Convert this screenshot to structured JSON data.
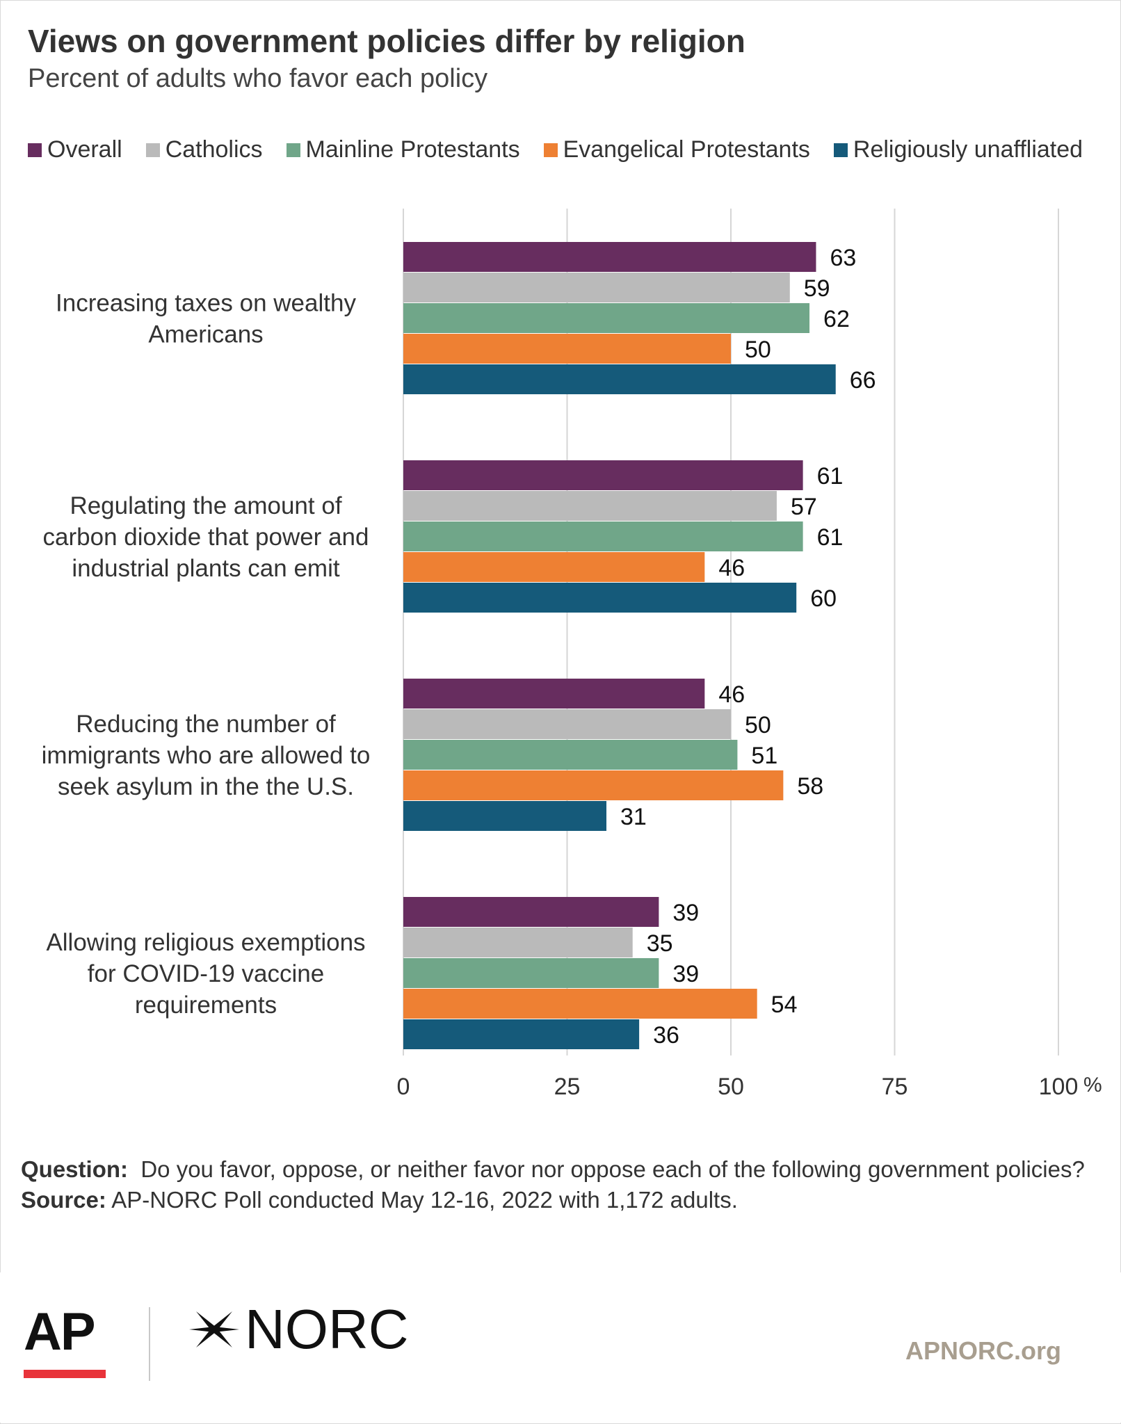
{
  "header": {
    "title": "Views on government policies differ by religion",
    "subtitle": "Percent of adults who favor each policy"
  },
  "footnote": {
    "question_label": "Question:",
    "question_text": "Do you favor, oppose, or neither favor nor oppose each of the following government policies?",
    "source_label": "Source:",
    "source_text": "AP-NORC Poll conducted May 12-16, 2022 with 1,172 adults."
  },
  "footer": {
    "ap_logo": "AP",
    "norc_logo": "NORC",
    "site": "APNORC.org"
  },
  "chart_data": {
    "type": "bar",
    "orientation": "horizontal",
    "categories": [
      [
        "Increasing taxes on wealthy",
        "Americans"
      ],
      [
        "Regulating the amount of",
        "carbon dioxide that power and",
        "industrial plants can emit"
      ],
      [
        "Reducing the number of",
        "immigrants who are allowed to",
        "seek asylum in the the U.S."
      ],
      [
        "Allowing religious exemptions",
        "for COVID-19 vaccine",
        "requirements"
      ]
    ],
    "series": [
      {
        "name": "Overall",
        "color": "#672d5f",
        "values": [
          63,
          61,
          46,
          39
        ]
      },
      {
        "name": "Catholics",
        "color": "#bababa",
        "values": [
          59,
          57,
          50,
          35
        ]
      },
      {
        "name": "Mainline Protestants",
        "color": "#70a689",
        "values": [
          62,
          61,
          51,
          39
        ]
      },
      {
        "name": "Evangelical Protestants",
        "color": "#ee8033",
        "values": [
          50,
          46,
          58,
          54
        ]
      },
      {
        "name": "Religiously unaffliated",
        "color": "#155a7a",
        "values": [
          66,
          60,
          31,
          36
        ]
      }
    ],
    "xlim": [
      0,
      100
    ],
    "xticks": [
      "0",
      "25",
      "50",
      "75",
      "100"
    ],
    "x_unit": "%",
    "grid": true,
    "legend_position": "top"
  }
}
